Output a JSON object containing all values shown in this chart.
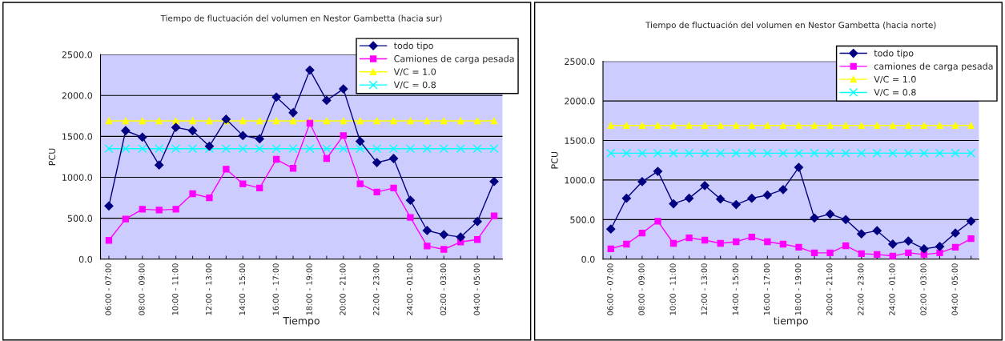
{
  "chart_data": [
    {
      "type": "line",
      "title": "Tiempo de fluctuación del volumen en Nestor Gambetta (hacia sur)",
      "xlabel": "Tiempo",
      "ylabel": "PCU",
      "categories": [
        "06:00 - 07:00",
        null,
        "08:00 - 09:00",
        null,
        "10:00 - 11:00",
        null,
        "12:00 - 13:00",
        null,
        "14:00 - 15:00",
        null,
        "16:00 - 17:00",
        null,
        "18:00 - 19:00",
        null,
        "20:00 - 21:00",
        null,
        "22:00 - 23:00",
        null,
        "24:00 - 01:00",
        null,
        "02:00 - 03:00",
        null,
        "04:00 - 05:00",
        null
      ],
      "series": [
        {
          "name": "todo tipo",
          "color": "#000080",
          "marker": "diamond",
          "values": [
            650,
            1570,
            1490,
            1150,
            1610,
            1570,
            1380,
            1710,
            1510,
            1470,
            1980,
            1790,
            2310,
            1940,
            2080,
            1440,
            1180,
            1230,
            720,
            350,
            300,
            270,
            460,
            950
          ]
        },
        {
          "name": "Camiones de carga pesada",
          "color": "#ff00ff",
          "marker": "square",
          "values": [
            230,
            490,
            610,
            600,
            610,
            800,
            750,
            1100,
            920,
            870,
            1220,
            1110,
            1660,
            1230,
            1510,
            920,
            820,
            870,
            510,
            160,
            120,
            210,
            240,
            530
          ]
        },
        {
          "name": "V/C = 1.0",
          "color": "#ffff00",
          "marker": "triangle",
          "values": [
            1690,
            1690,
            1690,
            1690,
            1690,
            1690,
            1690,
            1690,
            1690,
            1690,
            1690,
            1690,
            1690,
            1690,
            1690,
            1690,
            1690,
            1690,
            1690,
            1690,
            1690,
            1690,
            1690,
            1690
          ]
        },
        {
          "name": "V/C = 0.8",
          "color": "#00ffff",
          "marker": "cross",
          "values": [
            1350,
            1350,
            1350,
            1350,
            1350,
            1350,
            1350,
            1350,
            1350,
            1350,
            1350,
            1350,
            1350,
            1350,
            1350,
            1350,
            1350,
            1350,
            1350,
            1350,
            1350,
            1350,
            1350,
            1350
          ]
        }
      ],
      "ylim": [
        0,
        2500
      ],
      "yticks": [
        {
          "value": 0,
          "label": "0.0"
        },
        {
          "value": 500,
          "label": "500.0"
        },
        {
          "value": 1000,
          "label": "1000.0"
        },
        {
          "value": 1500,
          "label": "1500.0"
        },
        {
          "value": 2000,
          "label": "2000.0"
        },
        {
          "value": 2500,
          "label": "2500.0"
        }
      ],
      "grid": "y",
      "legend": "top right"
    },
    {
      "type": "line",
      "title": "Tiempo de fluctuación del volumen en Nestor Gambetta (hacia norte)",
      "xlabel": "tiempo",
      "ylabel": "PCU",
      "categories": [
        "06:00 - 07:00",
        null,
        "08:00 - 09:00",
        null,
        "10:00 - 11:00",
        null,
        "12:00 - 13:00",
        null,
        "14:00 - 15:00",
        null,
        "16:00 - 17:00",
        null,
        "18:00 - 19:00",
        null,
        "20:00 - 21:00",
        null,
        "22:00 - 23:00",
        null,
        "24:00 - 01:00",
        null,
        "02:00 - 03:00",
        null,
        "04:00 - 05:00",
        null
      ],
      "series": [
        {
          "name": "todo tipo",
          "color": "#000080",
          "marker": "diamond",
          "values": [
            380,
            770,
            980,
            1110,
            700,
            770,
            930,
            760,
            690,
            770,
            810,
            880,
            1160,
            520,
            570,
            500,
            320,
            360,
            190,
            230,
            130,
            160,
            330,
            480
          ]
        },
        {
          "name": "camiones de carga pesada",
          "color": "#ff00ff",
          "marker": "square",
          "values": [
            130,
            190,
            330,
            480,
            200,
            270,
            240,
            200,
            220,
            280,
            220,
            190,
            150,
            80,
            80,
            170,
            70,
            60,
            40,
            80,
            60,
            80,
            150,
            260
          ]
        },
        {
          "name": "V/C = 1.0",
          "color": "#ffff00",
          "marker": "triangle",
          "values": [
            1690,
            1690,
            1690,
            1690,
            1690,
            1690,
            1690,
            1690,
            1690,
            1690,
            1690,
            1690,
            1690,
            1690,
            1690,
            1690,
            1690,
            1690,
            1690,
            1690,
            1690,
            1690,
            1690,
            1690
          ]
        },
        {
          "name": "V/C = 0.8",
          "color": "#00ffff",
          "marker": "cross",
          "values": [
            1340,
            1340,
            1340,
            1340,
            1340,
            1340,
            1340,
            1340,
            1340,
            1340,
            1340,
            1340,
            1340,
            1340,
            1340,
            1340,
            1340,
            1340,
            1340,
            1340,
            1340,
            1340,
            1340,
            1340
          ]
        }
      ],
      "ylim": [
        0,
        2500
      ],
      "yticks": [
        {
          "value": 0,
          "label": "0.0"
        },
        {
          "value": 500,
          "label": "500.0"
        },
        {
          "value": 1000,
          "label": "1000.0"
        },
        {
          "value": 1500,
          "label": "1500.0"
        },
        {
          "value": 2000,
          "label": "2000.0"
        },
        {
          "value": 2500,
          "label": "2500.0"
        }
      ],
      "grid": "y",
      "legend": "top right"
    }
  ]
}
